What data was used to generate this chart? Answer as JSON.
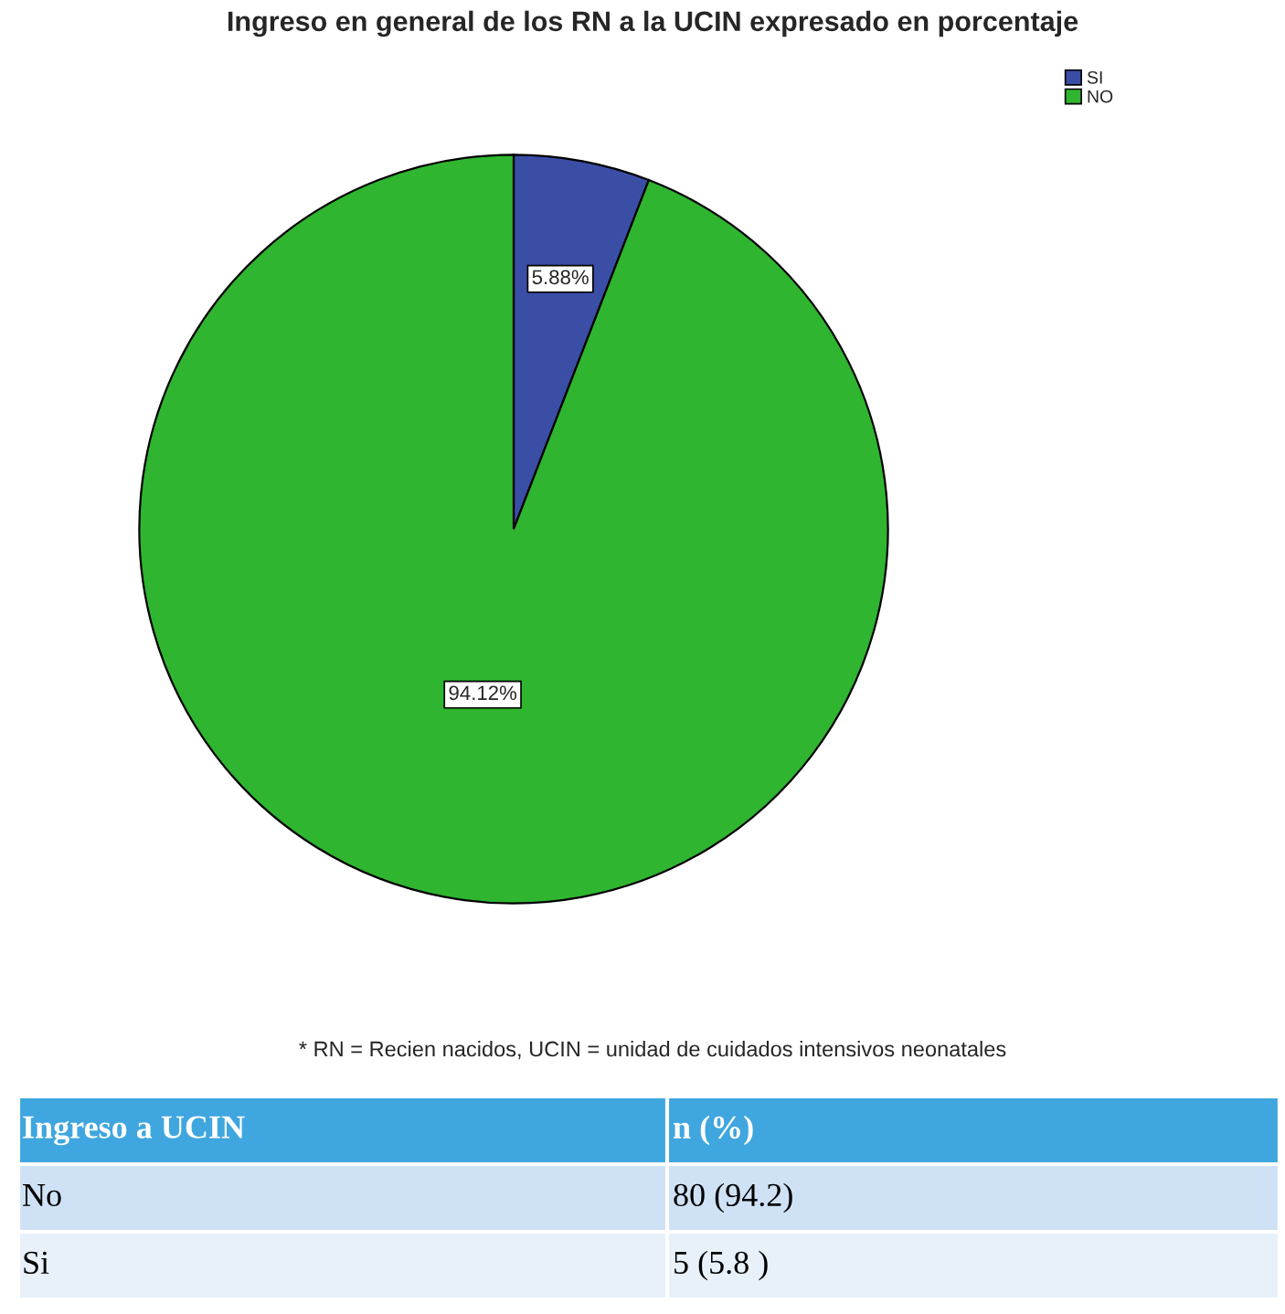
{
  "chart_data": {
    "type": "pie",
    "title": "Ingreso en general de los RN a la UCIN expresado en porcentaje",
    "categories": [
      "SI",
      "NO"
    ],
    "values": [
      5.88,
      94.12
    ],
    "colors": [
      "#3a4ea6",
      "#2fb52f"
    ],
    "value_labels": [
      "5.88%",
      "94.12%"
    ],
    "legend": "top right",
    "annotations": [
      "* RN = Recien nacidos, UCIN = unidad de cuidados intensivos neonatales",
      "Ingreso a UCIN",
      "n (%)",
      "No",
      "80 (94.2)",
      "Si",
      "5 (5.8 )"
    ]
  }
}
